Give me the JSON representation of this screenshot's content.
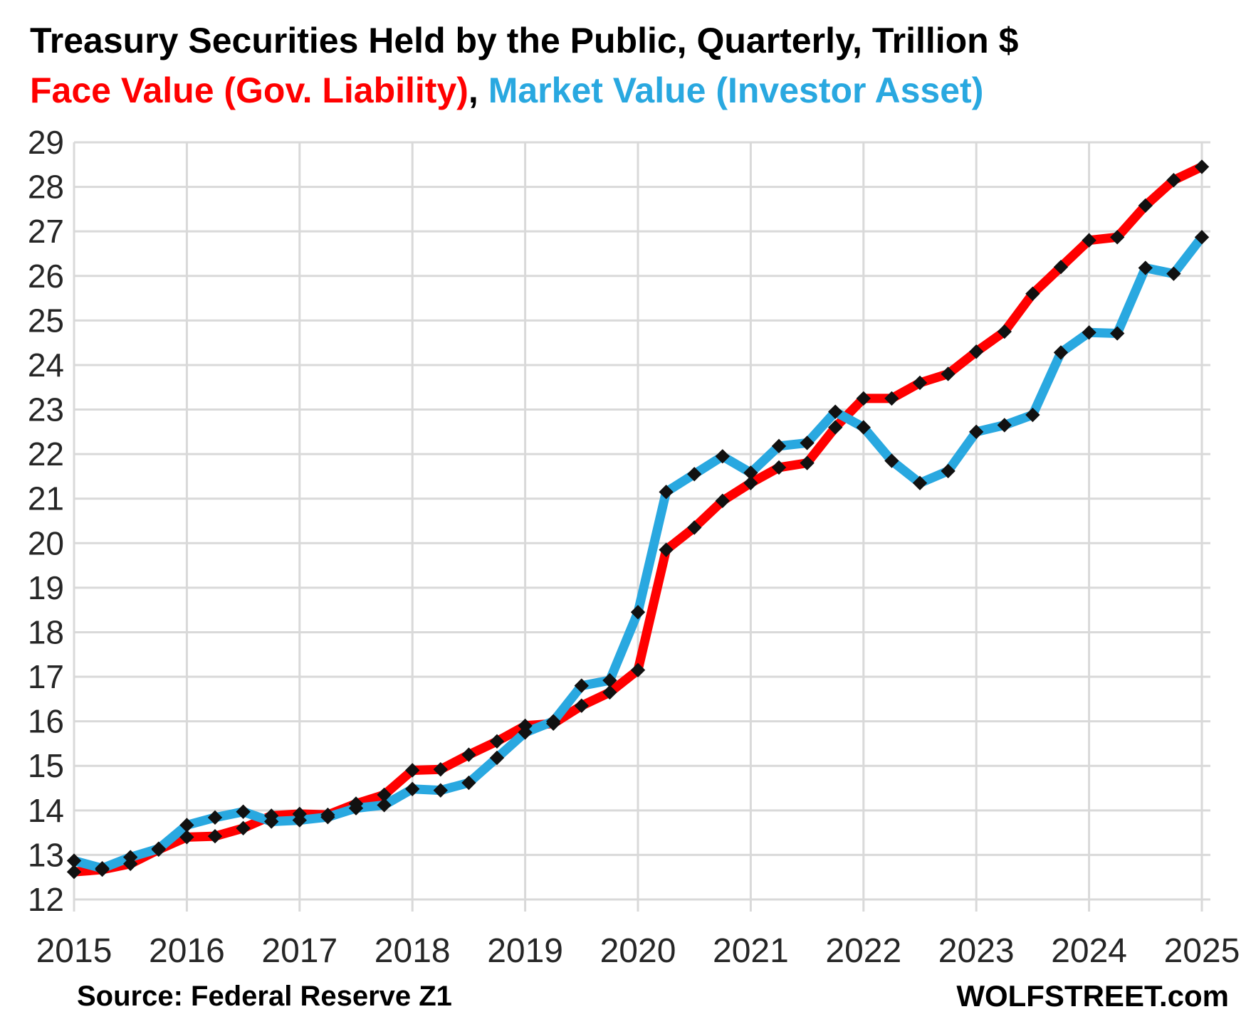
{
  "page": {
    "title": "Treasury Securities Held by the Public, Quarterly, Trillion $",
    "subtitle": {
      "face_label": "Face Value (Gov. Liability)",
      "separator": ", ",
      "market_label": "Market Value (Investor Asset)"
    },
    "footer": {
      "source": "Source: Federal Reserve Z1",
      "branding": "WOLFSTREET.com"
    }
  },
  "chart_data": {
    "type": "line",
    "title": "Treasury Securities Held by the Public, Quarterly, Trillion $",
    "x_frequency": "quarterly",
    "quarters": [
      "2015 Q1",
      "2015 Q2",
      "2015 Q3",
      "2015 Q4",
      "2016 Q1",
      "2016 Q2",
      "2016 Q3",
      "2016 Q4",
      "2017 Q1",
      "2017 Q2",
      "2017 Q3",
      "2017 Q4",
      "2018 Q1",
      "2018 Q2",
      "2018 Q3",
      "2018 Q4",
      "2019 Q1",
      "2019 Q2",
      "2019 Q3",
      "2019 Q4",
      "2020 Q1",
      "2020 Q2",
      "2020 Q3",
      "2020 Q4",
      "2021 Q1",
      "2021 Q2",
      "2021 Q3",
      "2021 Q4",
      "2022 Q1",
      "2022 Q2",
      "2022 Q3",
      "2022 Q4",
      "2023 Q1",
      "2023 Q2",
      "2023 Q3",
      "2023 Q4",
      "2024 Q1",
      "2024 Q2",
      "2024 Q3",
      "2024 Q4",
      "2025 Q1"
    ],
    "xticks": [
      2015,
      2016,
      2017,
      2018,
      2019,
      2020,
      2021,
      2022,
      2023,
      2024,
      2025
    ],
    "ylim": [
      12,
      29
    ],
    "ytick_step": 1,
    "grid": true,
    "legend_position": "in-subtitle",
    "series": [
      {
        "name": "Face Value (Gov. Liability)",
        "role": "face-value",
        "color": "#ff0000",
        "values": [
          12.62,
          12.67,
          12.8,
          13.12,
          13.4,
          13.42,
          13.6,
          13.88,
          13.92,
          13.9,
          14.15,
          14.35,
          14.9,
          14.92,
          15.25,
          15.55,
          15.9,
          15.95,
          16.35,
          16.65,
          17.15,
          19.85,
          20.35,
          20.95,
          21.35,
          21.7,
          21.8,
          22.6,
          23.25,
          23.25,
          23.6,
          23.8,
          24.3,
          24.75,
          25.6,
          26.2,
          26.8,
          26.87,
          27.58,
          28.15,
          28.45
        ]
      },
      {
        "name": "Market Value (Investor Asset)",
        "role": "market-value",
        "color": "#29a8e0",
        "values": [
          12.87,
          12.7,
          12.95,
          13.14,
          13.67,
          13.84,
          13.97,
          13.75,
          13.78,
          13.85,
          14.05,
          14.12,
          14.48,
          14.45,
          14.62,
          15.18,
          15.75,
          16.0,
          16.8,
          16.92,
          18.45,
          21.15,
          21.55,
          21.95,
          21.58,
          22.18,
          22.25,
          22.95,
          22.6,
          21.85,
          21.35,
          21.62,
          22.5,
          22.65,
          22.88,
          24.28,
          24.73,
          24.71,
          26.18,
          26.05,
          26.87
        ]
      }
    ],
    "marker": "diamond",
    "colors": {
      "grid": "#d9d9d9",
      "axis_text": "#262626",
      "marker": "#111111",
      "face_line": "#ff0000",
      "market_line": "#29a8e0"
    }
  }
}
